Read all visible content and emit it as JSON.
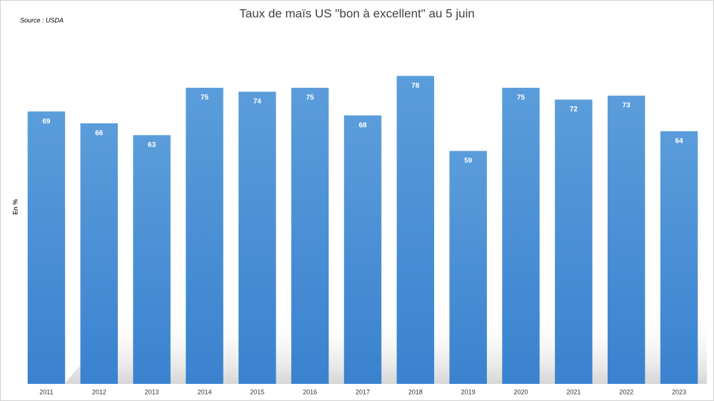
{
  "chart_data": {
    "type": "bar",
    "title": "Taux de maïs US \"bon à excellent\" au 5 juin",
    "source": "Source : USDA",
    "y_label": "En %",
    "categories": [
      "2011",
      "2012",
      "2013",
      "2014",
      "2015",
      "2016",
      "2017",
      "2018",
      "2019",
      "2020",
      "2021",
      "2022",
      "2023"
    ],
    "values": [
      69,
      66,
      63,
      75,
      74,
      75,
      68,
      78,
      59,
      75,
      72,
      73,
      64
    ],
    "color": "#4a8fd6",
    "ylim": [
      0,
      90
    ]
  }
}
